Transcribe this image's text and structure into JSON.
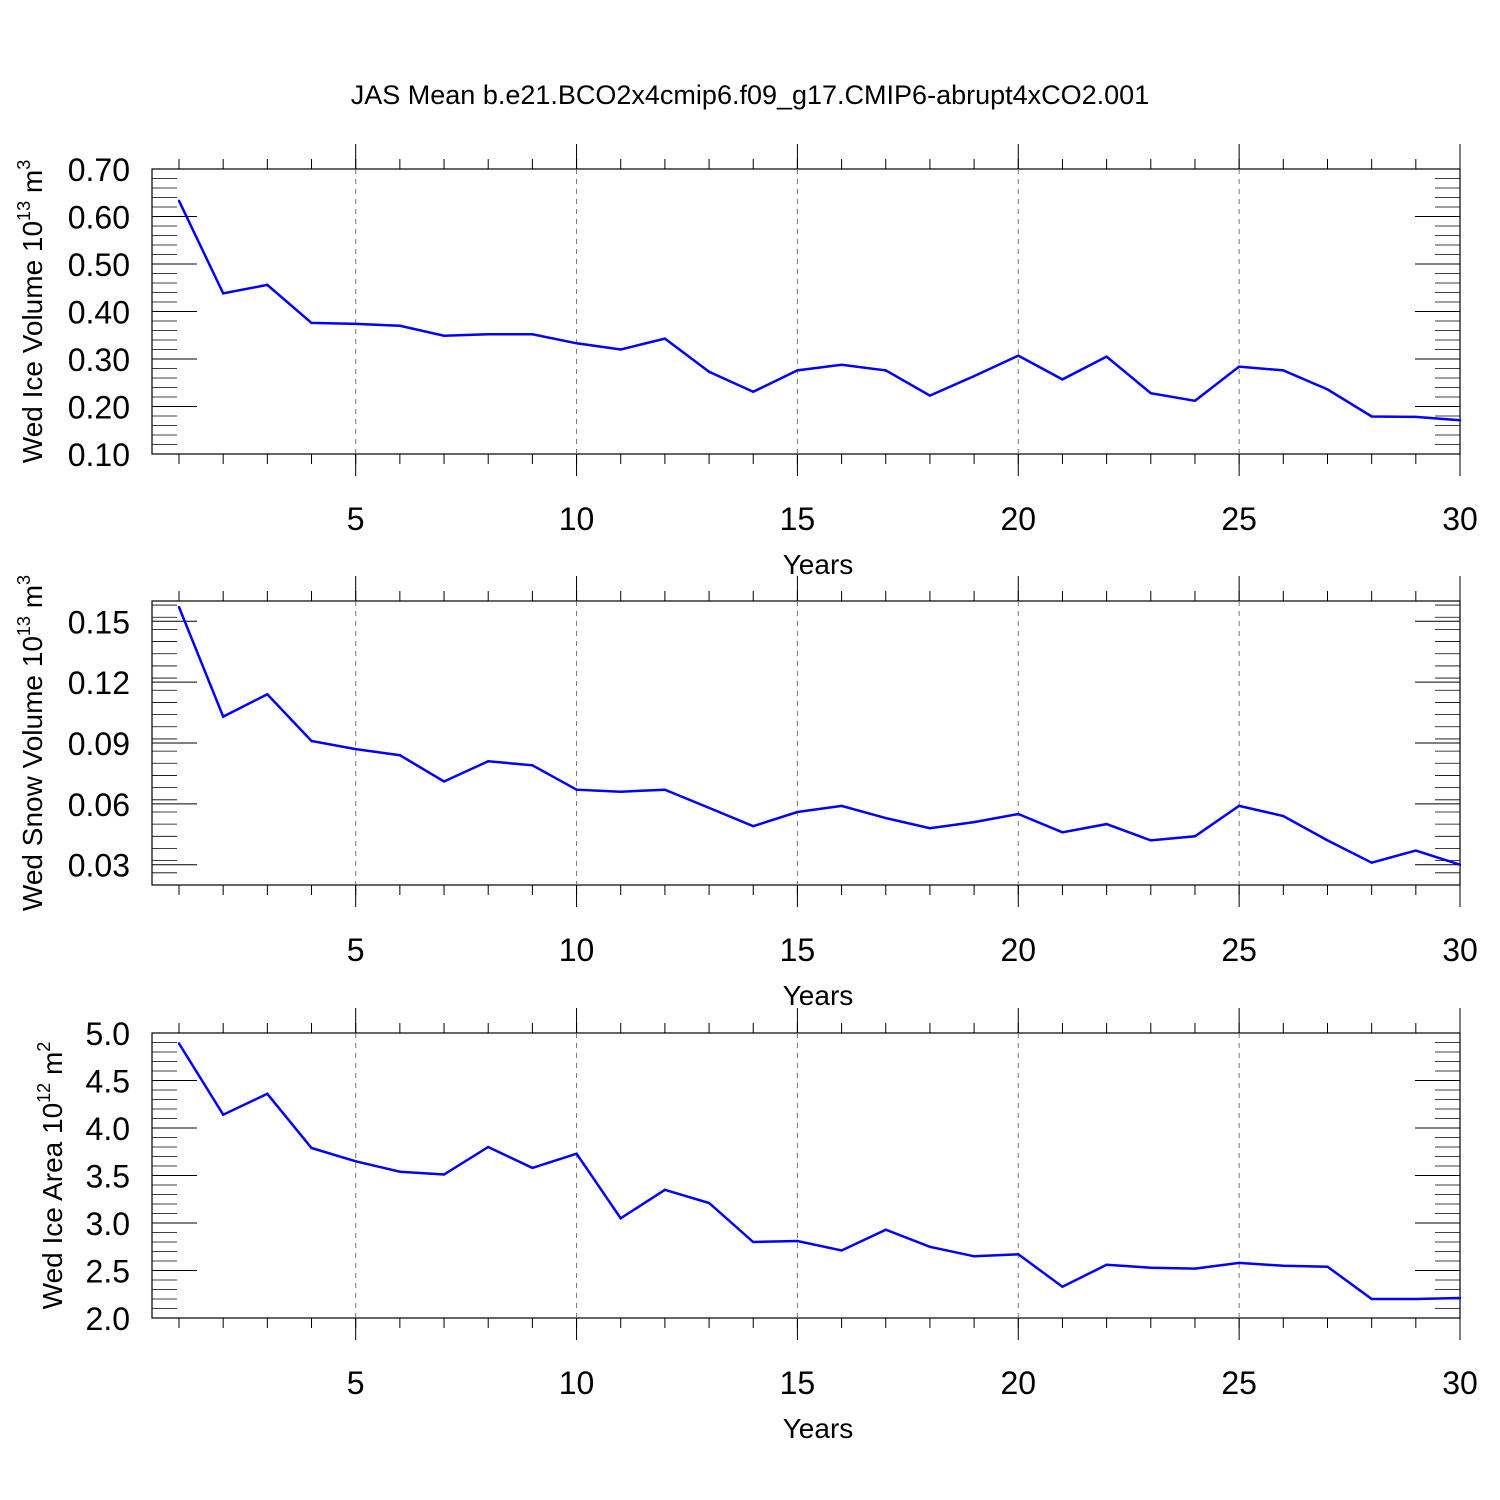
{
  "title": "JAS Mean b.e21.BCO2x4cmip6.f09_g17.CMIP6-abrupt4xCO2.001",
  "chart_data": [
    {
      "type": "line",
      "ylabel": "Wed Ice Volume 10",
      "ylabel_exp": "13",
      "ylabel_unit": " m",
      "ylabel_unit_exp": "3",
      "xlabel": "Years",
      "xlim": [
        1,
        30
      ],
      "ylim": [
        0.1,
        0.7
      ],
      "xticks": [
        5,
        10,
        15,
        20,
        25,
        30
      ],
      "yticks": [
        "0.10",
        "0.20",
        "0.30",
        "0.40",
        "0.50",
        "0.60",
        "0.70"
      ],
      "ytick_values": [
        0.1,
        0.2,
        0.3,
        0.4,
        0.5,
        0.6,
        0.7
      ],
      "x": [
        1,
        2,
        3,
        4,
        5,
        6,
        7,
        8,
        9,
        10,
        11,
        12,
        13,
        14,
        15,
        16,
        17,
        18,
        19,
        20,
        21,
        22,
        23,
        24,
        25,
        26,
        27,
        28,
        29,
        30
      ],
      "values": [
        0.633,
        0.438,
        0.456,
        0.376,
        0.374,
        0.37,
        0.349,
        0.352,
        0.352,
        0.333,
        0.32,
        0.343,
        0.273,
        0.231,
        0.276,
        0.288,
        0.276,
        0.223,
        0.264,
        0.307,
        0.257,
        0.305,
        0.228,
        0.212,
        0.284,
        0.276,
        0.236,
        0.179,
        0.178,
        0.171
      ],
      "line_color": "#0000ff"
    },
    {
      "type": "line",
      "ylabel": "Wed Snow Volume 10",
      "ylabel_exp": "13",
      "ylabel_unit": " m",
      "ylabel_unit_exp": "3",
      "xlabel": "Years",
      "xlim": [
        1,
        30
      ],
      "ylim": [
        0.02,
        0.16
      ],
      "xticks": [
        5,
        10,
        15,
        20,
        25,
        30
      ],
      "yticks": [
        "0.03",
        "0.06",
        "0.09",
        "0.12",
        "0.15"
      ],
      "ytick_values": [
        0.03,
        0.06,
        0.09,
        0.12,
        0.15
      ],
      "x": [
        1,
        2,
        3,
        4,
        5,
        6,
        7,
        8,
        9,
        10,
        11,
        12,
        13,
        14,
        15,
        16,
        17,
        18,
        19,
        20,
        21,
        22,
        23,
        24,
        25,
        26,
        27,
        28,
        29,
        30
      ],
      "values": [
        0.157,
        0.103,
        0.114,
        0.091,
        0.087,
        0.084,
        0.071,
        0.081,
        0.079,
        0.067,
        0.066,
        0.067,
        0.058,
        0.049,
        0.056,
        0.059,
        0.053,
        0.048,
        0.051,
        0.055,
        0.046,
        0.05,
        0.042,
        0.044,
        0.059,
        0.054,
        0.042,
        0.031,
        0.037,
        0.03
      ],
      "line_color": "#0000ff"
    },
    {
      "type": "line",
      "ylabel": "Wed Ice Area 10",
      "ylabel_exp": "12",
      "ylabel_unit": " m",
      "ylabel_unit_exp": "2",
      "xlabel": "Years",
      "xlim": [
        1,
        30
      ],
      "ylim": [
        2.0,
        5.0
      ],
      "xticks": [
        5,
        10,
        15,
        20,
        25,
        30
      ],
      "yticks": [
        "2.0",
        "2.5",
        "3.0",
        "3.5",
        "4.0",
        "4.5",
        "5.0"
      ],
      "ytick_values": [
        2.0,
        2.5,
        3.0,
        3.5,
        4.0,
        4.5,
        5.0
      ],
      "x": [
        1,
        2,
        3,
        4,
        5,
        6,
        7,
        8,
        9,
        10,
        11,
        12,
        13,
        14,
        15,
        16,
        17,
        18,
        19,
        20,
        21,
        22,
        23,
        24,
        25,
        26,
        27,
        28,
        29,
        30
      ],
      "values": [
        4.89,
        4.14,
        4.36,
        3.79,
        3.65,
        3.54,
        3.51,
        3.8,
        3.58,
        3.73,
        3.05,
        3.35,
        3.21,
        2.8,
        2.81,
        2.71,
        2.93,
        2.75,
        2.65,
        2.67,
        2.33,
        2.56,
        2.53,
        2.52,
        2.58,
        2.55,
        2.54,
        2.2,
        2.2,
        2.21
      ],
      "line_color": "#0000ff"
    }
  ]
}
